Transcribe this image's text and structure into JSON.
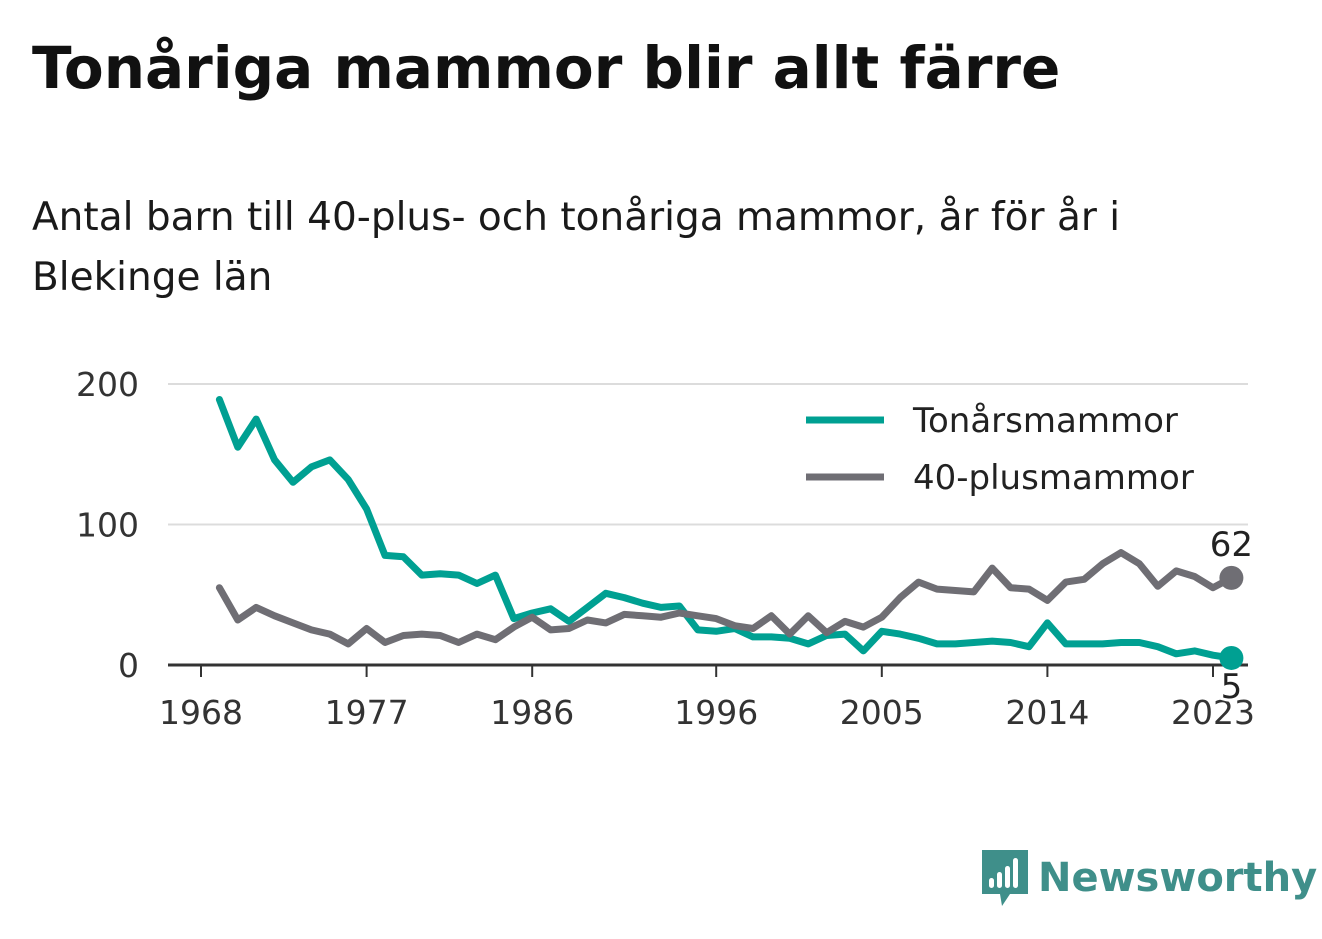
{
  "title": "Tonåriga mammor blir allt färre",
  "subtitle": "Antal barn till 40-plus- och tonåriga mammor, år för år i Blekinge län",
  "brand": {
    "name": "Newsworthy",
    "icon": "newsworthy-logo-icon",
    "color": "#3f8f8a"
  },
  "chart_data": {
    "type": "line",
    "x": [
      1969,
      1970,
      1971,
      1972,
      1973,
      1974,
      1975,
      1976,
      1977,
      1978,
      1979,
      1980,
      1981,
      1982,
      1983,
      1984,
      1985,
      1986,
      1987,
      1988,
      1989,
      1990,
      1991,
      1992,
      1993,
      1994,
      1995,
      1996,
      1997,
      1998,
      1999,
      2000,
      2001,
      2002,
      2003,
      2004,
      2005,
      2006,
      2007,
      2008,
      2009,
      2010,
      2011,
      2012,
      2013,
      2014,
      2015,
      2016,
      2017,
      2018,
      2019,
      2020,
      2021,
      2022,
      2023,
      2024
    ],
    "series": [
      {
        "name": "Tonårsmammor",
        "color": "#00a092",
        "values": [
          189,
          155,
          175,
          146,
          130,
          141,
          146,
          132,
          111,
          78,
          77,
          64,
          65,
          64,
          58,
          64,
          33,
          37,
          40,
          31,
          41,
          51,
          48,
          44,
          41,
          42,
          25,
          24,
          26,
          20,
          20,
          19,
          15,
          21,
          22,
          10,
          24,
          22,
          19,
          15,
          15,
          16,
          17,
          16,
          13,
          30,
          15,
          15,
          15,
          16,
          16,
          13,
          8,
          10,
          7,
          5
        ],
        "end_label": "5"
      },
      {
        "name": "40-plusmammor",
        "color": "#6f6e74",
        "values": [
          55,
          32,
          41,
          35,
          30,
          25,
          22,
          15,
          26,
          16,
          21,
          22,
          21,
          16,
          22,
          18,
          27,
          34,
          25,
          26,
          32,
          30,
          36,
          35,
          34,
          37,
          35,
          33,
          28,
          26,
          35,
          22,
          35,
          23,
          31,
          27,
          34,
          48,
          59,
          54,
          53,
          52,
          69,
          55,
          54,
          46,
          59,
          61,
          72,
          80,
          72,
          56,
          67,
          63,
          55,
          62
        ],
        "end_label": "62"
      }
    ],
    "x_ticks": [
      1968,
      1977,
      1986,
      1996,
      2005,
      2014,
      2023
    ],
    "y_ticks": [
      0,
      100,
      200
    ],
    "xlim": [
      1968,
      2025
    ],
    "ylim": [
      0,
      200
    ],
    "grid": true,
    "legend_position": "top-right",
    "xlabel": "",
    "ylabel": ""
  }
}
